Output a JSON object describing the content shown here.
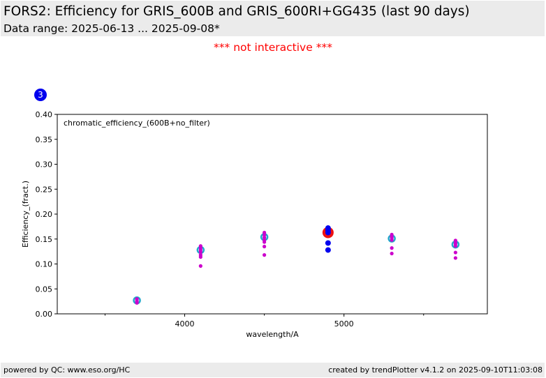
{
  "header": {
    "title": "FORS2: Efficiency for GRIS_600B and GRIS_600RI+GG435 (last 90 days)",
    "subtitle": "Data range: 2025-06-13 ... 2025-09-08*"
  },
  "notice": "*** not interactive ***",
  "badge": {
    "text": "3",
    "color": "#0000ee"
  },
  "footer": {
    "left": "powered by QC: www.eso.org/HC",
    "right": "created by trendPlotter v4.1.2 on 2025-09-10T11:03:08"
  },
  "chart_data": {
    "type": "scatter",
    "annotation": "chromatic_efficiency_(600B+no_filter)",
    "xlabel": "wavelength/A",
    "ylabel": "Efficiency_(fract.)",
    "xlim": [
      3200,
      5900
    ],
    "ylim": [
      0.0,
      0.4
    ],
    "x_ticks": [
      4000,
      5000
    ],
    "x_tick_labels": [
      "4000",
      "5000"
    ],
    "x_minor_ticks": [
      3500,
      4500,
      5500
    ],
    "y_ticks": [
      0.0,
      0.05,
      0.1,
      0.15,
      0.2,
      0.25,
      0.3,
      0.35,
      0.4
    ],
    "y_tick_labels": [
      "0.00",
      "0.05",
      "0.10",
      "0.15",
      "0.20",
      "0.25",
      "0.30",
      "0.35",
      "0.40"
    ],
    "grid": false,
    "series": [
      {
        "color": "#cc00cc",
        "marker": "small-dot",
        "points": [
          [
            3700,
            0.022
          ],
          [
            3700,
            0.025
          ],
          [
            3700,
            0.028
          ],
          [
            3700,
            0.03
          ],
          [
            4100,
            0.096
          ],
          [
            4100,
            0.114
          ],
          [
            4100,
            0.118
          ],
          [
            4100,
            0.124
          ],
          [
            4100,
            0.128
          ],
          [
            4100,
            0.132
          ],
          [
            4100,
            0.136
          ],
          [
            4500,
            0.118
          ],
          [
            4500,
            0.135
          ],
          [
            4500,
            0.144
          ],
          [
            4500,
            0.148
          ],
          [
            4500,
            0.153
          ],
          [
            4500,
            0.158
          ],
          [
            4500,
            0.163
          ],
          [
            5300,
            0.121
          ],
          [
            5300,
            0.132
          ],
          [
            5300,
            0.148
          ],
          [
            5300,
            0.152
          ],
          [
            5300,
            0.155
          ],
          [
            5300,
            0.159
          ],
          [
            5700,
            0.112
          ],
          [
            5700,
            0.123
          ],
          [
            5700,
            0.136
          ],
          [
            5700,
            0.14
          ],
          [
            5700,
            0.143
          ],
          [
            5700,
            0.147
          ]
        ]
      },
      {
        "color": "#22aacc",
        "marker": "ring",
        "points": [
          [
            3700,
            0.027
          ],
          [
            4100,
            0.128
          ],
          [
            4500,
            0.154
          ],
          [
            5300,
            0.151
          ],
          [
            5700,
            0.139
          ]
        ]
      },
      {
        "color": "#0000ee",
        "marker": "dot",
        "points": [
          [
            4900,
            0.128
          ],
          [
            4900,
            0.142
          ],
          [
            4900,
            0.163
          ],
          [
            4900,
            0.168
          ],
          [
            4900,
            0.172
          ]
        ]
      },
      {
        "color": "#ee1111",
        "marker": "large-dot",
        "points": [
          [
            4900,
            0.163
          ]
        ]
      }
    ]
  }
}
